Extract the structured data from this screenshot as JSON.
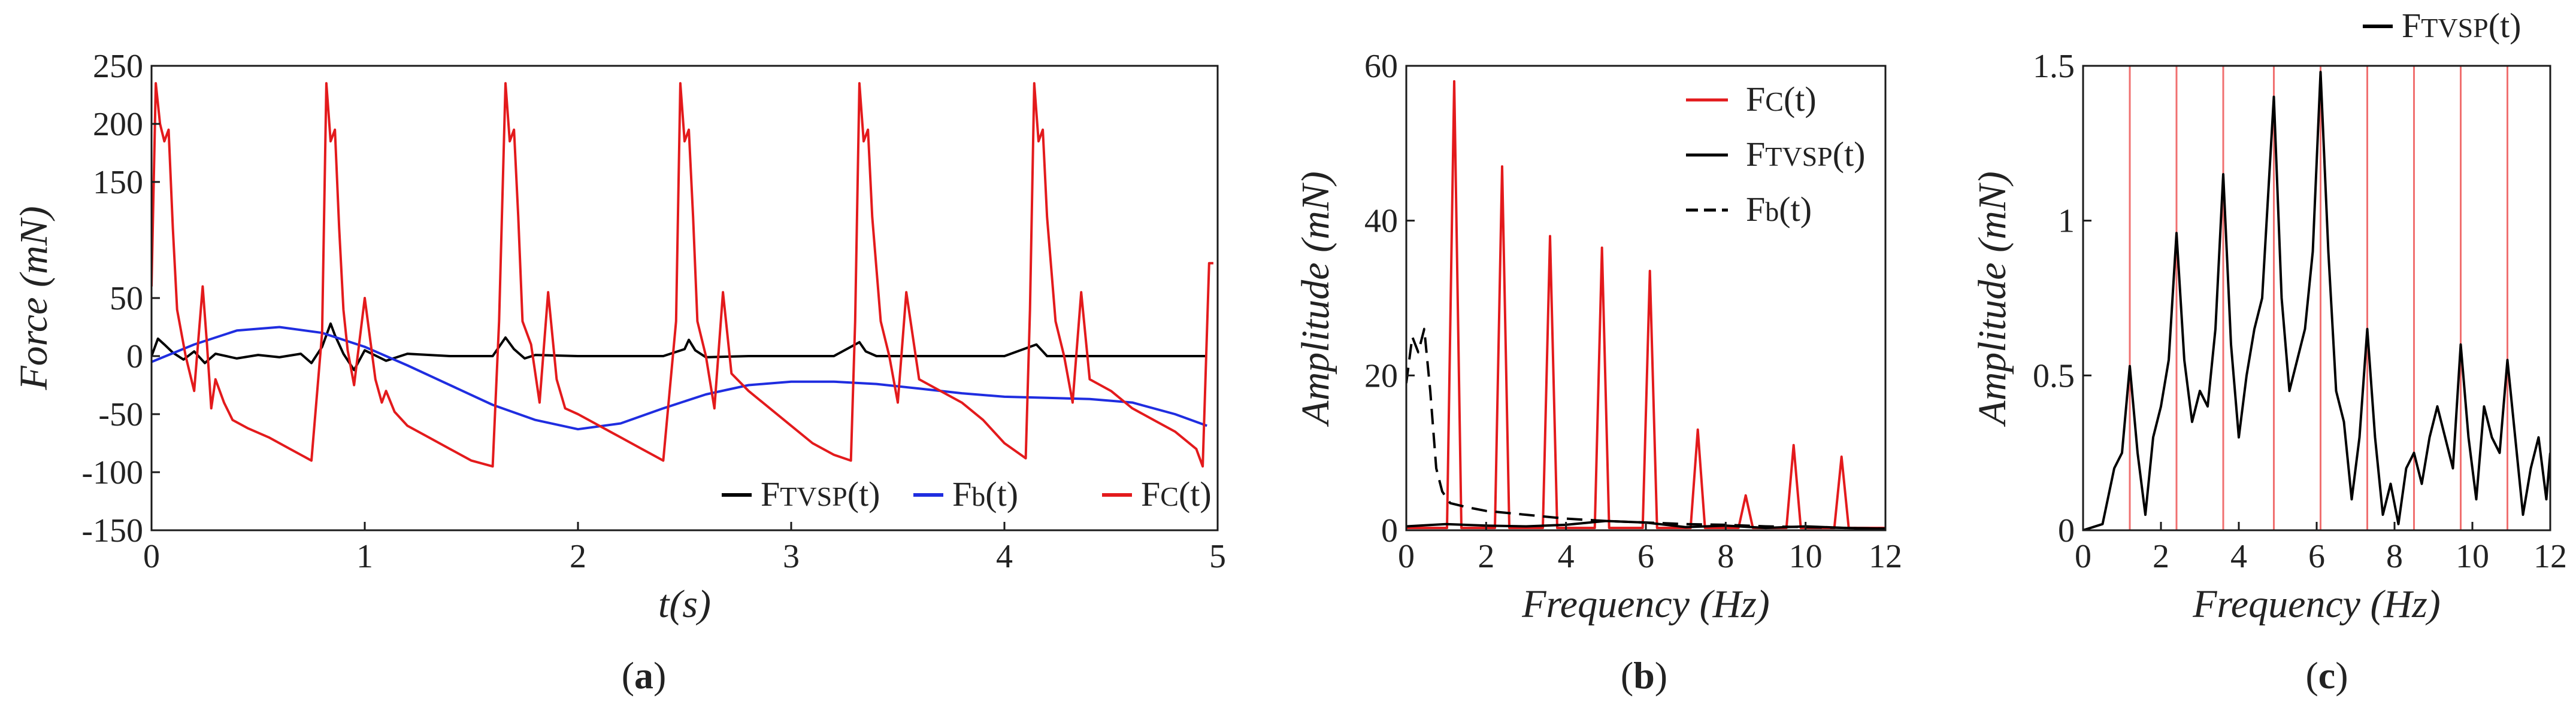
{
  "chart_data": [
    {
      "panel": "a",
      "panel_label": "(a)",
      "type": "line",
      "xlabel": "t(s)",
      "ylabel": "Force (mN)",
      "xlim": [
        0,
        5
      ],
      "ylim": [
        -150,
        250
      ],
      "xticks": [
        0,
        1,
        2,
        3,
        4,
        5
      ],
      "yticks": [
        -150,
        -100,
        -50,
        0,
        50,
        150,
        200,
        250
      ],
      "legend": {
        "position": "bottom-right",
        "entries": [
          {
            "label": "F_TVSP(t)",
            "color": "#000000",
            "style": "solid"
          },
          {
            "label": "F_b(t)",
            "color": "#1f2de0",
            "style": "solid"
          },
          {
            "label": "F_C(t)",
            "color": "#e31a1c",
            "style": "solid"
          }
        ]
      },
      "series": [
        {
          "name": "F_TVSP(t)",
          "color": "#000000",
          "x": [
            0,
            0.03,
            0.06,
            0.1,
            0.15,
            0.2,
            0.25,
            0.3,
            0.4,
            0.5,
            0.6,
            0.7,
            0.75,
            0.8,
            0.84,
            0.86,
            0.9,
            0.95,
            1.0,
            1.1,
            1.2,
            1.4,
            1.6,
            1.66,
            1.7,
            1.75,
            1.8,
            2.0,
            2.2,
            2.4,
            2.5,
            2.52,
            2.55,
            2.6,
            2.8,
            3.0,
            3.2,
            3.32,
            3.35,
            3.4,
            3.6,
            3.8,
            4.0,
            4.15,
            4.18,
            4.2,
            4.4,
            4.6,
            4.8,
            4.95
          ],
          "y": [
            0,
            15,
            10,
            3,
            -3,
            4,
            -6,
            2,
            -2,
            1,
            -1,
            2,
            -6,
            8,
            28,
            18,
            2,
            -12,
            5,
            -4,
            2,
            0,
            0,
            16,
            6,
            -2,
            1,
            0,
            0,
            0,
            6,
            14,
            5,
            -1,
            0,
            0,
            0,
            12,
            4,
            0,
            0,
            0,
            0,
            10,
            4,
            0,
            0,
            0,
            0,
            0
          ]
        },
        {
          "name": "F_b(t)",
          "color": "#1f2de0",
          "x": [
            0,
            0.2,
            0.4,
            0.6,
            0.8,
            1.0,
            1.2,
            1.4,
            1.6,
            1.8,
            2.0,
            2.2,
            2.4,
            2.6,
            2.8,
            3.0,
            3.2,
            3.4,
            3.6,
            3.8,
            4.0,
            4.2,
            4.4,
            4.6,
            4.8,
            4.95
          ],
          "y": [
            -5,
            10,
            22,
            25,
            20,
            8,
            -8,
            -25,
            -42,
            -55,
            -63,
            -58,
            -45,
            -33,
            -25,
            -22,
            -22,
            -24,
            -28,
            -32,
            -35,
            -36,
            -37,
            -40,
            -50,
            -60
          ]
        },
        {
          "name": "F_C(t)",
          "color": "#e31a1c",
          "x": [
            0,
            0.02,
            0.04,
            0.06,
            0.08,
            0.1,
            0.12,
            0.16,
            0.2,
            0.24,
            0.26,
            0.28,
            0.3,
            0.34,
            0.38,
            0.45,
            0.55,
            0.65,
            0.75,
            0.8,
            0.82,
            0.84,
            0.86,
            0.88,
            0.9,
            0.92,
            0.95,
            1.0,
            1.05,
            1.08,
            1.1,
            1.14,
            1.2,
            1.3,
            1.4,
            1.5,
            1.6,
            1.63,
            1.66,
            1.68,
            1.7,
            1.72,
            1.74,
            1.78,
            1.82,
            1.86,
            1.9,
            1.94,
            2.0,
            2.1,
            2.2,
            2.3,
            2.4,
            2.46,
            2.48,
            2.5,
            2.52,
            2.54,
            2.56,
            2.6,
            2.64,
            2.68,
            2.72,
            2.8,
            2.9,
            3.0,
            3.1,
            3.2,
            3.28,
            3.3,
            3.32,
            3.34,
            3.36,
            3.38,
            3.42,
            3.46,
            3.5,
            3.54,
            3.6,
            3.7,
            3.8,
            3.9,
            4.0,
            4.1,
            4.12,
            4.14,
            4.16,
            4.18,
            4.2,
            4.24,
            4.28,
            4.32,
            4.36,
            4.4,
            4.5,
            4.6,
            4.7,
            4.8,
            4.9,
            4.93,
            4.96,
            4.98
          ],
          "y": [
            60,
            235,
            200,
            185,
            195,
            110,
            40,
            0,
            -30,
            60,
            10,
            -45,
            -20,
            -40,
            -55,
            -62,
            -70,
            -80,
            -90,
            20,
            235,
            185,
            195,
            110,
            40,
            5,
            -25,
            50,
            -20,
            -40,
            -30,
            -48,
            -60,
            -70,
            -80,
            -90,
            -95,
            30,
            235,
            185,
            195,
            120,
            30,
            10,
            -40,
            55,
            -20,
            -45,
            -50,
            -60,
            -70,
            -80,
            -90,
            30,
            235,
            185,
            195,
            120,
            30,
            0,
            -45,
            55,
            -15,
            -30,
            -45,
            -60,
            -75,
            -85,
            -90,
            30,
            235,
            185,
            195,
            120,
            30,
            0,
            -40,
            55,
            -20,
            -30,
            -40,
            -55,
            -75,
            -88,
            40,
            235,
            185,
            195,
            120,
            30,
            0,
            -40,
            55,
            -20,
            -30,
            -45,
            -55,
            -65,
            -80,
            -95,
            80,
            80
          ]
        }
      ]
    },
    {
      "panel": "b",
      "panel_label": "(b)",
      "type": "line",
      "xlabel": "Frequency (Hz)",
      "ylabel": "Amplitude (mN)",
      "xlim": [
        0,
        12
      ],
      "ylim": [
        0,
        60
      ],
      "xticks": [
        0,
        2,
        4,
        6,
        8,
        10,
        12
      ],
      "yticks": [
        0,
        20,
        40,
        60
      ],
      "legend": {
        "position": "top-right",
        "entries": [
          {
            "label": "F_C(t)",
            "color": "#e31a1c",
            "style": "solid"
          },
          {
            "label": "F_TVSP(t)",
            "color": "#000000",
            "style": "solid"
          },
          {
            "label": "F_b(t)",
            "color": "#000000",
            "style": "dashed"
          }
        ]
      },
      "series": [
        {
          "name": "F_C(t)",
          "color": "#e31a1c",
          "peaks_x": [
            1.2,
            2.4,
            3.6,
            4.9,
            6.1,
            7.3,
            8.5,
            9.7,
            10.9
          ],
          "peaks_y": [
            58,
            47,
            38,
            36.5,
            33.5,
            13,
            4.5,
            11,
            9.5
          ]
        },
        {
          "name": "F_TVSP(t)",
          "color": "#000000",
          "x": [
            0,
            1,
            2,
            3,
            4,
            5,
            6,
            7,
            8,
            9,
            10,
            11,
            12
          ],
          "y": [
            0.5,
            0.8,
            0.6,
            0.5,
            0.7,
            1.2,
            1.0,
            0.4,
            0.6,
            0.3,
            0.5,
            0.3,
            0.2
          ]
        },
        {
          "name": "F_b(t)",
          "color": "#000000",
          "dashed": true,
          "x": [
            0,
            0.15,
            0.3,
            0.45,
            0.6,
            0.75,
            0.9,
            1.1,
            1.5,
            2.0,
            3.0,
            4.0,
            5.0,
            6.0,
            7.0,
            8.0,
            9.0,
            10.0,
            11.0,
            12.0
          ],
          "y": [
            19,
            25,
            23,
            26,
            18,
            8,
            5,
            3.5,
            3,
            2.5,
            2,
            1.5,
            1.2,
            1.0,
            0.8,
            0.7,
            0.5,
            0.4,
            0.3,
            0.2
          ]
        }
      ]
    },
    {
      "panel": "c",
      "panel_label": "(c)",
      "type": "line",
      "xlabel": "Frequency (Hz)",
      "ylabel": "Amplitude (mN)",
      "xlim": [
        0,
        12
      ],
      "ylim": [
        0,
        1.5
      ],
      "xticks": [
        0,
        2,
        4,
        6,
        8,
        10,
        12
      ],
      "yticks": [
        0,
        0.5,
        1,
        1.5
      ],
      "ytick_labels": [
        "0",
        "0.5",
        "1",
        "1.5"
      ],
      "legend": {
        "position": "top-right outside",
        "entries": [
          {
            "label": "F_TVSP(t)",
            "color": "#000000",
            "style": "solid"
          }
        ]
      },
      "vertical_lines": {
        "color": "#f07070",
        "x": [
          1.2,
          2.4,
          3.6,
          4.9,
          6.1,
          7.3,
          8.5,
          9.7,
          10.9
        ]
      },
      "series": [
        {
          "name": "F_TVSP(t)",
          "color": "#000000",
          "x": [
            0,
            0.5,
            0.8,
            1.0,
            1.2,
            1.4,
            1.6,
            1.8,
            2.0,
            2.2,
            2.4,
            2.6,
            2.8,
            3.0,
            3.2,
            3.4,
            3.6,
            3.8,
            4.0,
            4.2,
            4.4,
            4.6,
            4.9,
            5.1,
            5.3,
            5.5,
            5.7,
            5.9,
            6.1,
            6.3,
            6.5,
            6.7,
            6.9,
            7.1,
            7.3,
            7.5,
            7.7,
            7.9,
            8.1,
            8.3,
            8.5,
            8.7,
            8.9,
            9.1,
            9.3,
            9.5,
            9.7,
            9.9,
            10.1,
            10.3,
            10.5,
            10.7,
            10.9,
            11.1,
            11.3,
            11.5,
            11.7,
            11.9,
            12.0
          ],
          "y": [
            0,
            0.02,
            0.2,
            0.25,
            0.53,
            0.25,
            0.05,
            0.3,
            0.4,
            0.55,
            0.96,
            0.55,
            0.35,
            0.45,
            0.4,
            0.65,
            1.15,
            0.6,
            0.3,
            0.5,
            0.65,
            0.75,
            1.4,
            0.75,
            0.45,
            0.55,
            0.65,
            0.9,
            1.48,
            0.9,
            0.45,
            0.35,
            0.1,
            0.3,
            0.65,
            0.3,
            0.05,
            0.15,
            0.02,
            0.2,
            0.25,
            0.15,
            0.3,
            0.4,
            0.3,
            0.2,
            0.6,
            0.3,
            0.1,
            0.4,
            0.3,
            0.25,
            0.55,
            0.3,
            0.05,
            0.2,
            0.3,
            0.1,
            0.25
          ]
        }
      ]
    }
  ],
  "labels": {
    "panel_a": {
      "letter": "a"
    },
    "panel_b": {
      "letter": "b"
    },
    "panel_c": {
      "letter": "c"
    }
  }
}
